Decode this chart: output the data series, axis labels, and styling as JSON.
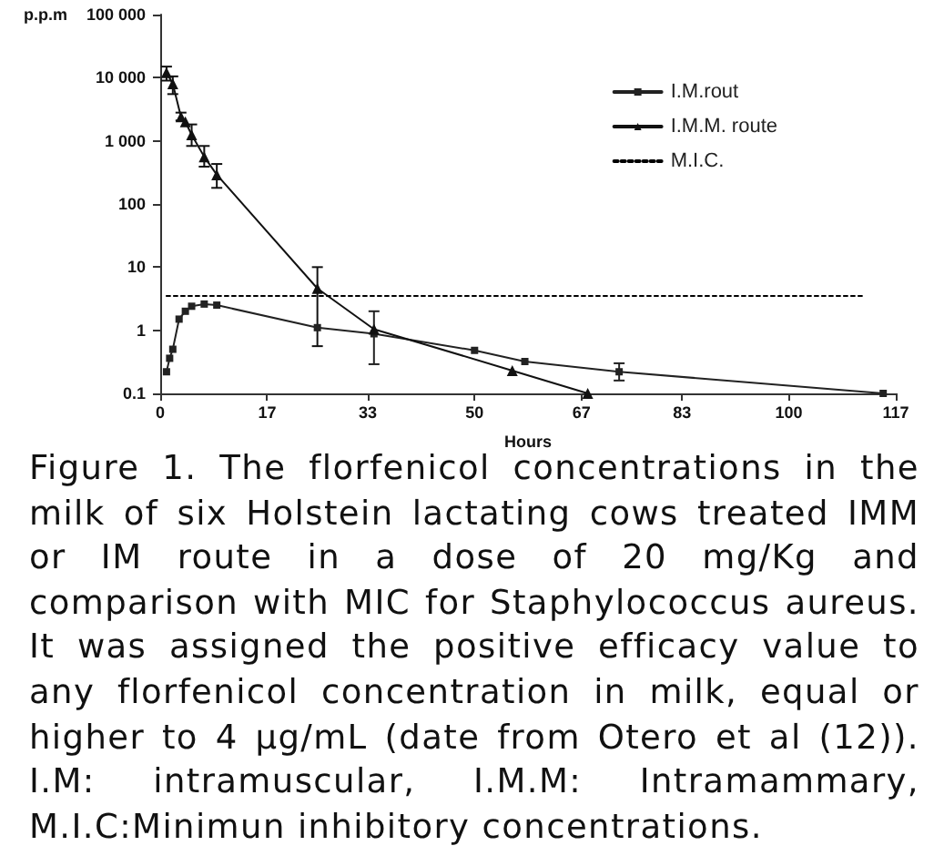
{
  "chart_data": {
    "type": "line",
    "xlabel": "Hours",
    "ylabel": "p.p.m",
    "log": "y",
    "xlim": [
      0,
      117
    ],
    "xticks": [
      0,
      17,
      33,
      50,
      67,
      83,
      100,
      117
    ],
    "ylim": [
      0.1,
      100000
    ],
    "yticks": [
      0.1,
      1,
      10,
      100,
      {
        "value": 1000,
        "label": "1 000"
      },
      {
        "value": 10000,
        "label": "10 000"
      },
      {
        "value": 100000,
        "label": "100 000"
      }
    ],
    "legend": "top right",
    "series": [
      {
        "name": "I.M.rout",
        "color": "#222222",
        "marker": "square",
        "x": [
          1,
          1.5,
          2,
          3,
          4,
          5,
          7,
          9,
          25,
          34,
          50,
          58,
          73,
          115
        ],
        "values": [
          0.22,
          0.36,
          0.5,
          1.5,
          2.0,
          2.4,
          2.6,
          2.5,
          1.1,
          0.88,
          0.48,
          0.32,
          0.22,
          0.1
        ],
        "errors": [
          null,
          null,
          null,
          null,
          null,
          null,
          null,
          null,
          null,
          [
            0.29,
            2.0
          ],
          null,
          null,
          [
            0.16,
            0.3
          ],
          null
        ]
      },
      {
        "name": "I.M.M. route",
        "color": "#111111",
        "marker": "triangle",
        "x": [
          1,
          2,
          3.3,
          4,
          5,
          7,
          9,
          25,
          34,
          56,
          68
        ],
        "values": [
          12000,
          8000,
          2400,
          2000,
          1250,
          560,
          290,
          4.6,
          1.04,
          0.23,
          0.1
        ],
        "errors": [
          [
            9000,
            15000
          ],
          [
            5500,
            10500
          ],
          [
            2100,
            2800
          ],
          null,
          [
            830,
            1820
          ],
          [
            390,
            830
          ],
          [
            180,
            430
          ],
          [
            0.56,
            10
          ],
          null,
          null,
          null
        ]
      },
      {
        "name": "M.I.C.",
        "color": "#000000",
        "marker": "none",
        "line_style": "dotted",
        "x": [
          1,
          112
        ],
        "values": [
          3.5,
          3.5
        ]
      }
    ],
    "annotations": [
      "Figure 1. The florfenicol concentrations in the milk of six Holstein lactating cows treated IMM or IM route in a dose of 20 mg/Kg and comparison with MIC for Staphylococcus aureus. It was assigned the positive efficacy value to any florfenicol concentration in milk, equal or higher to 4 µg/mL (date from Otero et al (12)). I.M: intramuscular, I.M.M: Intramammary, M.I.C:Minimun inhibitory concentrations."
    ]
  }
}
